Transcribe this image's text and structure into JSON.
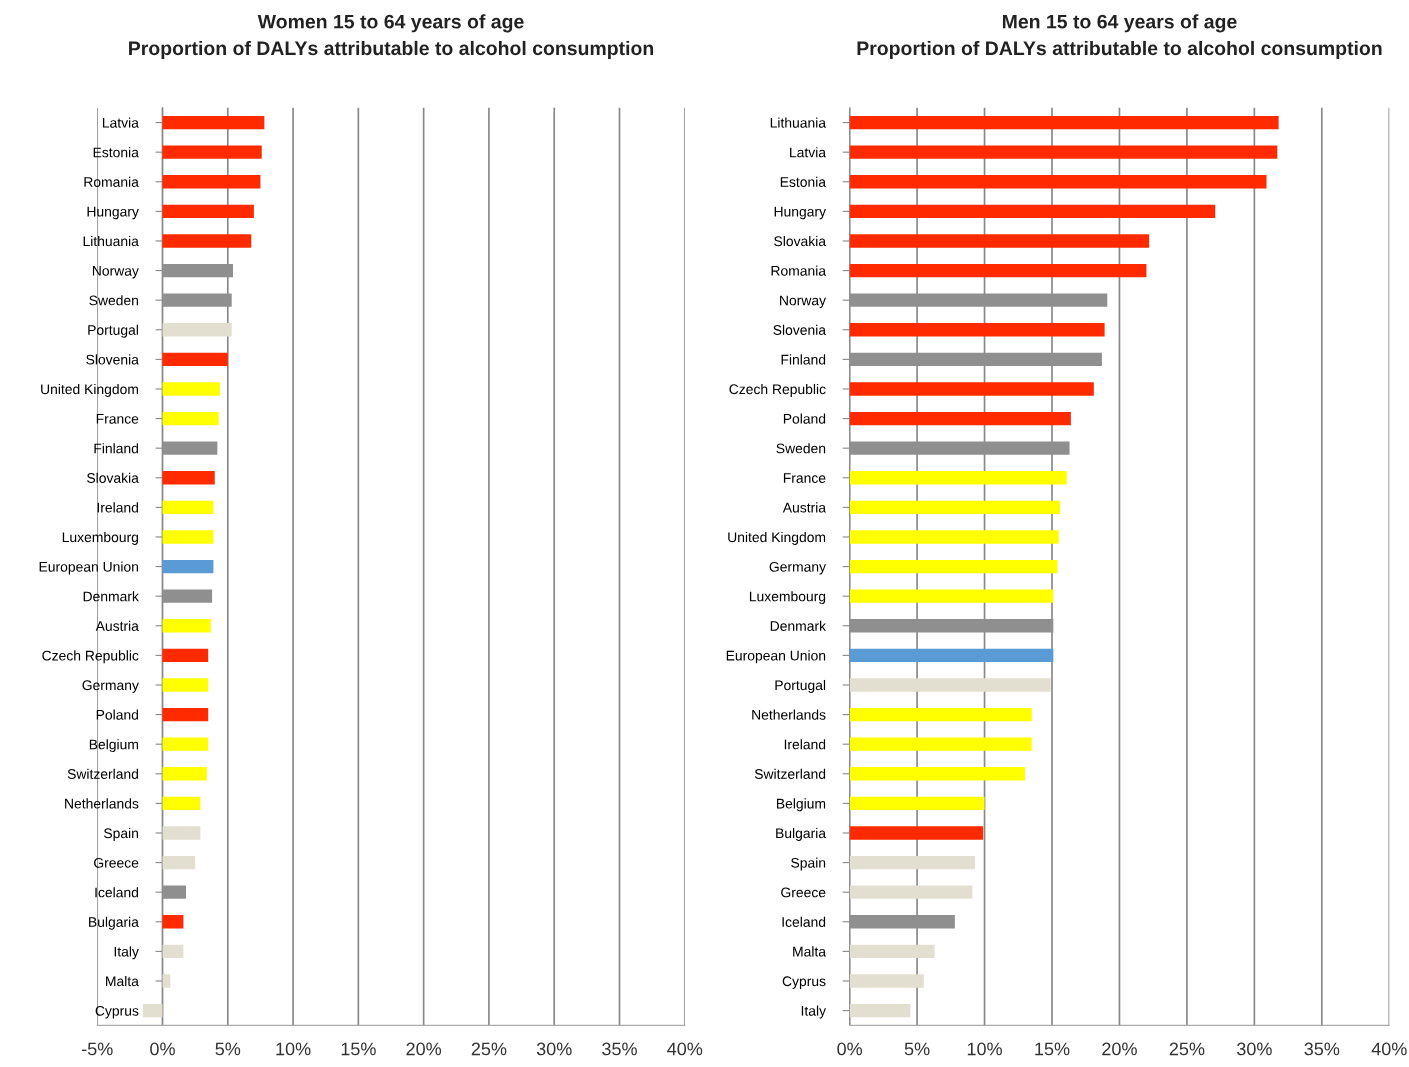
{
  "chart_data": [
    {
      "type": "bar",
      "orientation": "horizontal",
      "title": "Women 15 to 64 years of age\nProportion of DALYs attributable to alcohol consumption",
      "categories": [
        "Latvia",
        "Estonia",
        "Romania",
        "Hungary",
        "Lithuania",
        "Norway",
        "Sweden",
        "Portugal",
        "Slovenia",
        "United Kingdom",
        "France",
        "Finland",
        "Slovakia",
        "Ireland",
        "Luxembourg",
        "European Union",
        "Denmark",
        "Austria",
        "Czech Republic",
        "Germany",
        "Poland",
        "Belgium",
        "Switzerland",
        "Netherlands",
        "Spain",
        "Greece",
        "Iceland",
        "Bulgaria",
        "Italy",
        "Malta",
        "Cyprus"
      ],
      "values": [
        7.8,
        7.6,
        7.5,
        7.0,
        6.8,
        5.4,
        5.3,
        5.3,
        5.0,
        4.4,
        4.3,
        4.2,
        4.0,
        3.9,
        3.9,
        3.9,
        3.8,
        3.7,
        3.5,
        3.5,
        3.5,
        3.5,
        3.4,
        2.9,
        2.9,
        2.5,
        1.8,
        1.6,
        1.6,
        0.6,
        -1.5
      ],
      "colors": [
        "#ff2a00",
        "#ff2a00",
        "#ff2a00",
        "#ff2a00",
        "#ff2a00",
        "#8f8f8f",
        "#8f8f8f",
        "#e2dfd0",
        "#ff2a00",
        "#ffff00",
        "#ffff00",
        "#8f8f8f",
        "#ff2a00",
        "#ffff00",
        "#ffff00",
        "#5b9bd5",
        "#8f8f8f",
        "#ffff00",
        "#ff2a00",
        "#ffff00",
        "#ff2a00",
        "#ffff00",
        "#ffff00",
        "#ffff00",
        "#e2dfd0",
        "#e2dfd0",
        "#8f8f8f",
        "#ff2a00",
        "#e2dfd0",
        "#e2dfd0",
        "#e2dfd0"
      ],
      "xlim": [
        -5,
        40
      ],
      "xticks": [
        {
          "value": -5,
          "label": "-5%"
        },
        {
          "value": 0,
          "label": "0%"
        },
        {
          "value": 5,
          "label": "5%"
        },
        {
          "value": 10,
          "label": "10%"
        },
        {
          "value": 15,
          "label": "15%"
        },
        {
          "value": 20,
          "label": "20%"
        },
        {
          "value": 25,
          "label": "25%"
        },
        {
          "value": 30,
          "label": "30%"
        },
        {
          "value": 35,
          "label": "35%"
        },
        {
          "value": 40,
          "label": "40%"
        }
      ],
      "grid": "x",
      "legend": false
    },
    {
      "type": "bar",
      "orientation": "horizontal",
      "title": "Men 15 to 64 years of age\nProportion of DALYs attributable to alcohol consumption",
      "categories": [
        "Lithuania",
        "Latvia",
        "Estonia",
        "Hungary",
        "Slovakia",
        "Romania",
        "Norway",
        "Slovenia",
        "Finland",
        "Czech Republic",
        "Poland",
        "Sweden",
        "France",
        "Austria",
        "United Kingdom",
        "Germany",
        "Luxembourg",
        "Denmark",
        "European Union",
        "Portugal",
        "Netherlands",
        "Ireland",
        "Switzerland",
        "Belgium",
        "Bulgaria",
        "Spain",
        "Greece",
        "Iceland",
        "Malta",
        "Cyprus",
        "Italy"
      ],
      "values": [
        31.8,
        31.7,
        30.9,
        27.1,
        22.2,
        22.0,
        19.1,
        18.9,
        18.7,
        18.1,
        16.4,
        16.3,
        16.1,
        15.6,
        15.5,
        15.4,
        15.1,
        15.1,
        15.1,
        14.9,
        13.5,
        13.5,
        13.0,
        10.0,
        9.9,
        9.3,
        9.1,
        7.8,
        6.3,
        5.5,
        4.5
      ],
      "colors": [
        "#ff2a00",
        "#ff2a00",
        "#ff2a00",
        "#ff2a00",
        "#ff2a00",
        "#ff2a00",
        "#8f8f8f",
        "#ff2a00",
        "#8f8f8f",
        "#ff2a00",
        "#ff2a00",
        "#8f8f8f",
        "#ffff00",
        "#ffff00",
        "#ffff00",
        "#ffff00",
        "#ffff00",
        "#8f8f8f",
        "#5b9bd5",
        "#e2dfd0",
        "#ffff00",
        "#ffff00",
        "#ffff00",
        "#ffff00",
        "#ff2a00",
        "#e2dfd0",
        "#e2dfd0",
        "#8f8f8f",
        "#e2dfd0",
        "#e2dfd0",
        "#e2dfd0"
      ],
      "xlim": [
        0,
        40
      ],
      "xticks": [
        {
          "value": 0,
          "label": "0%"
        },
        {
          "value": 5,
          "label": "5%"
        },
        {
          "value": 10,
          "label": "10%"
        },
        {
          "value": 15,
          "label": "15%"
        },
        {
          "value": 20,
          "label": "20%"
        },
        {
          "value": 25,
          "label": "25%"
        },
        {
          "value": 30,
          "label": "30%"
        },
        {
          "value": 35,
          "label": "35%"
        },
        {
          "value": 40,
          "label": "40%"
        }
      ],
      "grid": "x",
      "legend": false
    }
  ]
}
